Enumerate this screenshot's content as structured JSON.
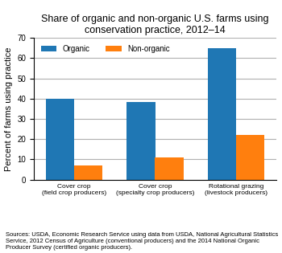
{
  "chart_data": {
    "type": "bar",
    "title": "Share of organic and non-organic U.S. farms using conservation practice, 2012–14",
    "ylabel": "Percent of farms using practice",
    "source": "Sources: USDA, Economic Research Service using data from USDA, National Agricultural Statistics Service, 2012 Census of Agriculture (conventional producers) and the 2014 National Organic Producer Survey (certified organic producers).",
    "categories": [
      "Cover crop\n(field crop producers)",
      "Cover crop\n(specialty crop producers)",
      "Rotational grazing\n(livestock producers)"
    ],
    "series": [
      {
        "name": "Organic",
        "values": [
          40,
          38.5,
          65
        ]
      },
      {
        "name": "Non-organic",
        "values": [
          7,
          11,
          22
        ]
      }
    ],
    "ylim": [
      0,
      70
    ],
    "yticks": [
      0,
      10,
      20,
      30,
      40,
      50,
      60,
      70
    ],
    "grid": true,
    "legend": "upper left"
  }
}
